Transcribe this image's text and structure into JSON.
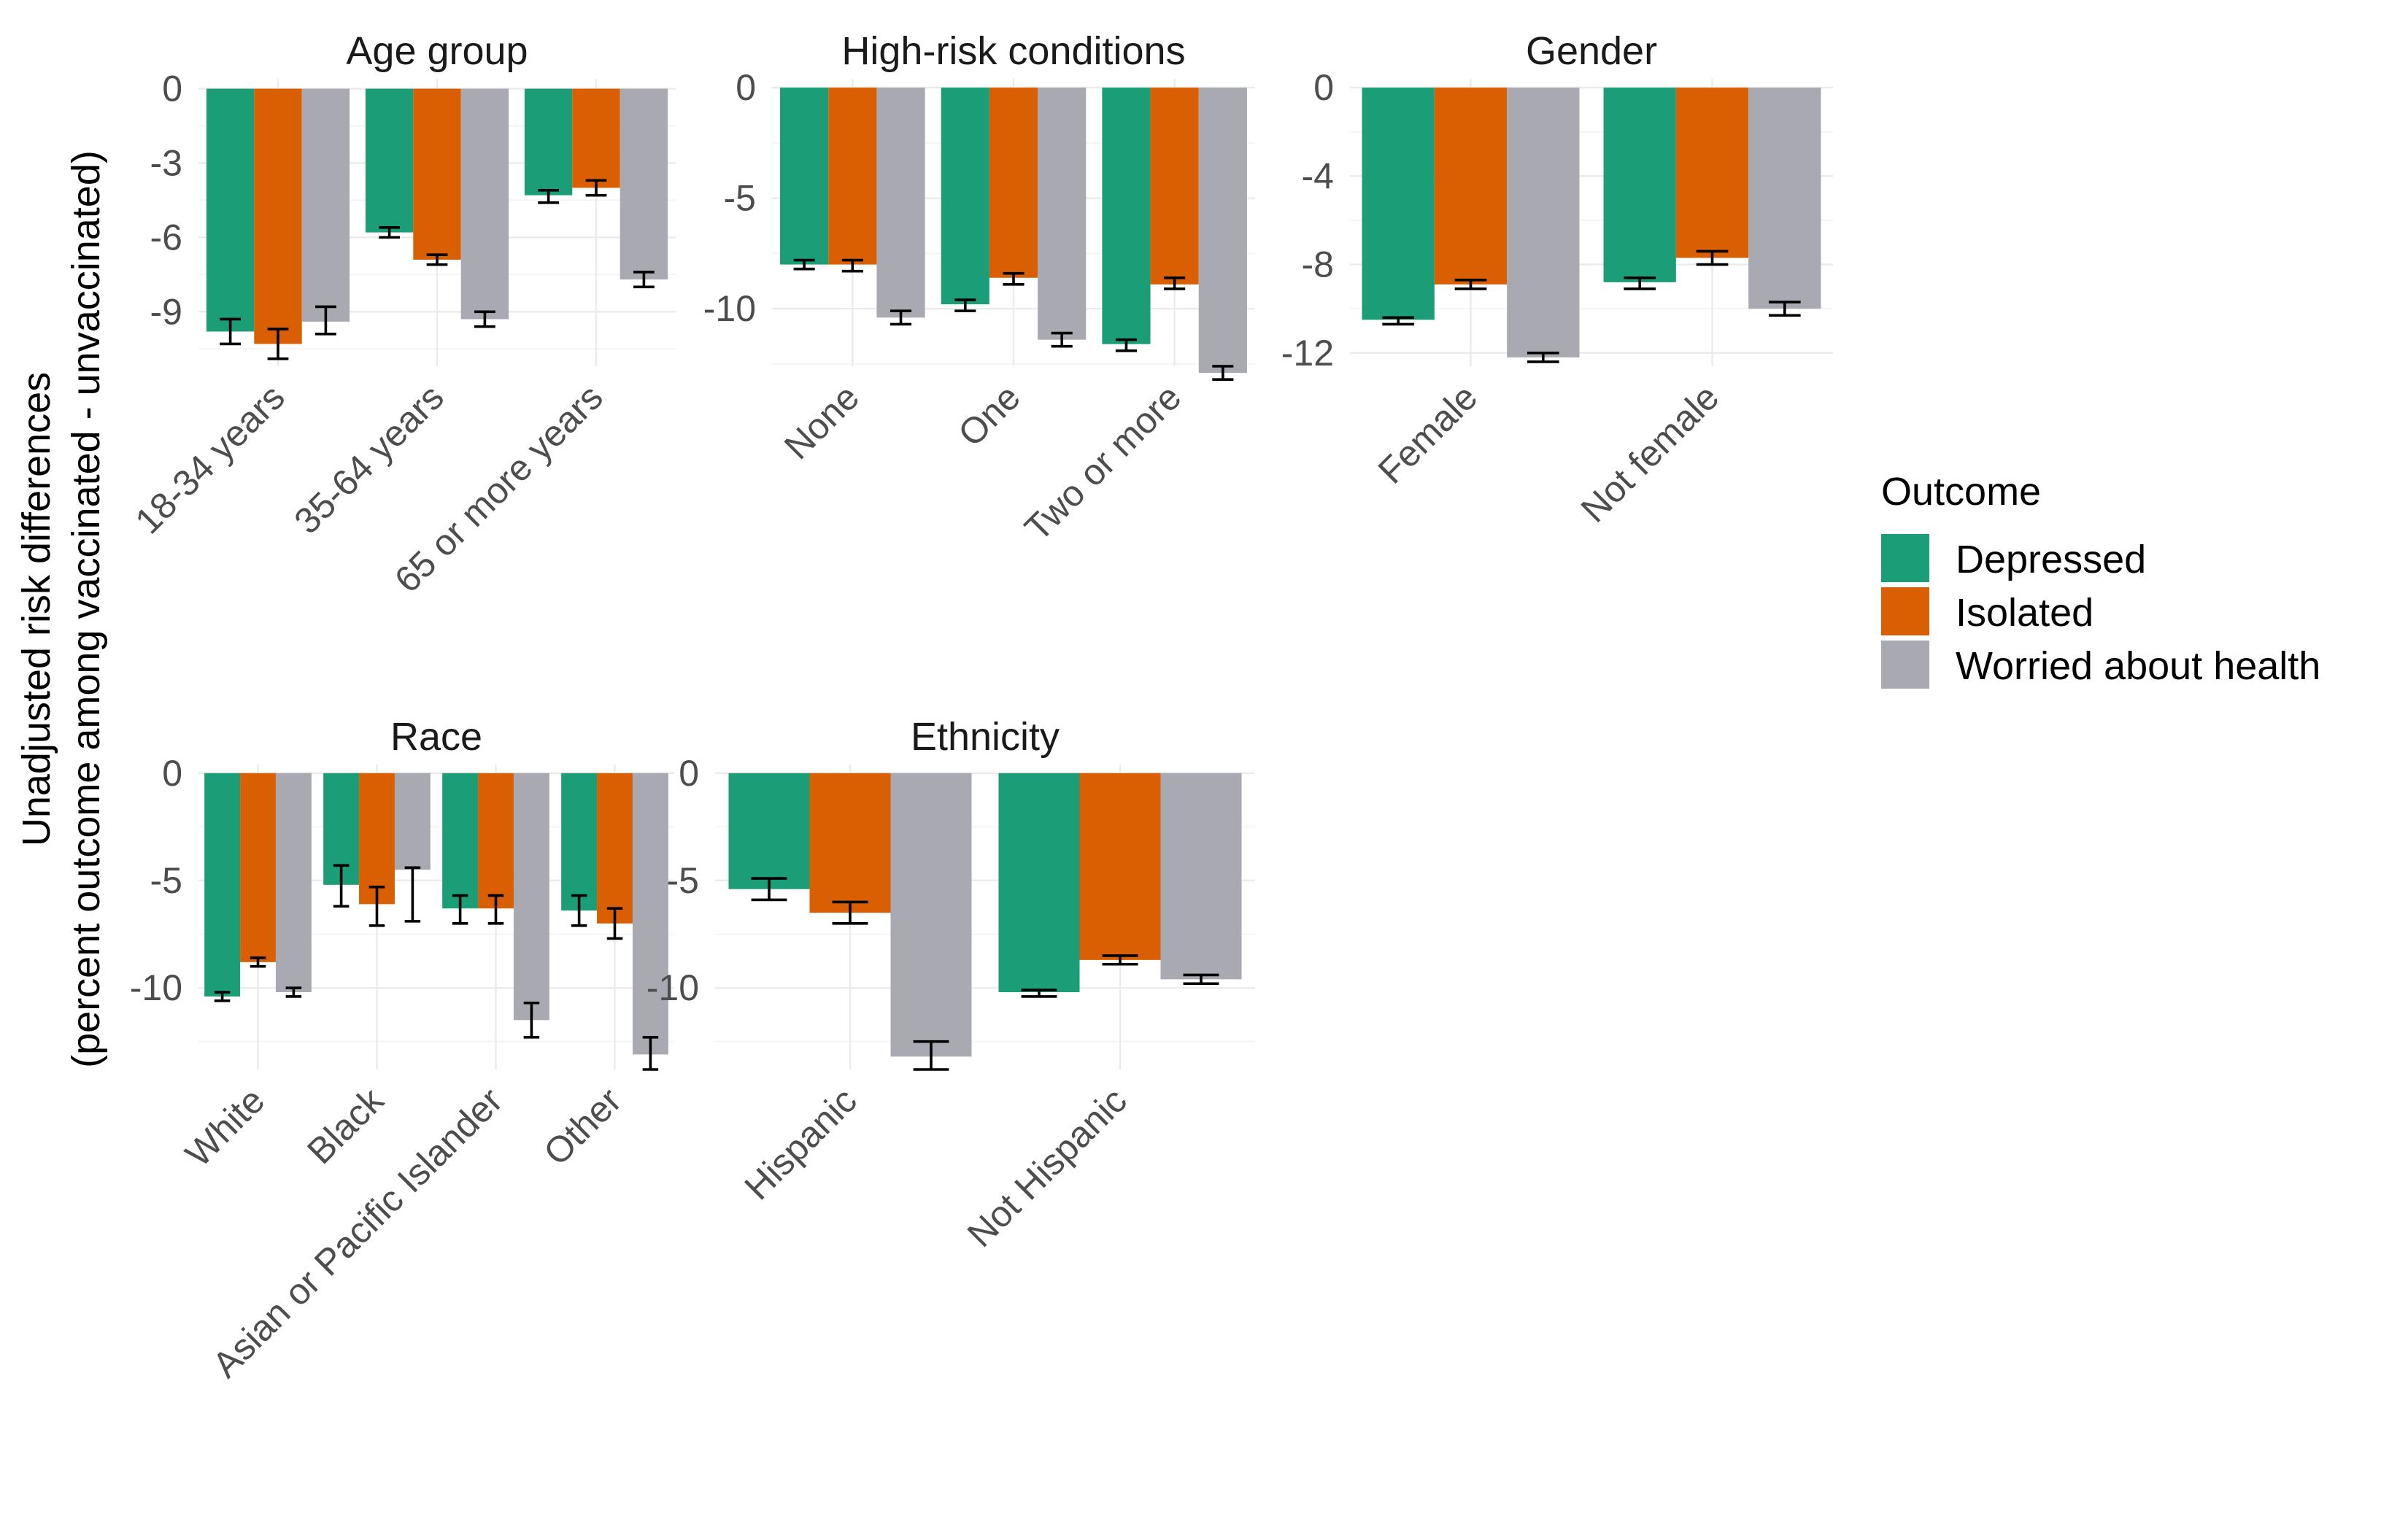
{
  "colors": {
    "Depressed": "#1b9e77",
    "Isolated": "#d95f02",
    "Worried about health": "#a9a9b1"
  },
  "y_axis_title": {
    "line1": "Unadjusted risk differences",
    "line2": "(percent outcome among vaccinated - unvaccinated)"
  },
  "legend": {
    "title": "Outcome",
    "items": [
      "Depressed",
      "Isolated",
      "Worried about health"
    ]
  },
  "chart_data": [
    {
      "type": "bar",
      "title": "Age group",
      "categories": [
        "18-34 years",
        "35-64 years",
        "65 or more years"
      ],
      "ylim": [
        -11.2,
        0.4
      ],
      "yticks": [
        0,
        -3,
        -6,
        -9
      ],
      "series": [
        {
          "name": "Depressed",
          "values": [
            -9.8,
            -5.8,
            -4.3
          ],
          "lower": [
            -10.3,
            -6.0,
            -4.6
          ],
          "upper": [
            -9.3,
            -5.6,
            -4.1
          ]
        },
        {
          "name": "Isolated",
          "values": [
            -10.3,
            -6.9,
            -4.0
          ],
          "lower": [
            -10.9,
            -7.1,
            -4.3
          ],
          "upper": [
            -9.7,
            -6.7,
            -3.7
          ]
        },
        {
          "name": "Worried about health",
          "values": [
            -9.4,
            -9.3,
            -7.7
          ],
          "lower": [
            -9.9,
            -9.6,
            -8.0
          ],
          "upper": [
            -8.8,
            -9.0,
            -7.4
          ]
        }
      ]
    },
    {
      "type": "bar",
      "title": "High-risk conditions",
      "categories": [
        "None",
        "One",
        "Two or more"
      ],
      "ylim": [
        -12.6,
        0.4
      ],
      "yticks": [
        0,
        -5,
        -10
      ],
      "series": [
        {
          "name": "Depressed",
          "values": [
            -8.0,
            -9.8,
            -11.6
          ],
          "lower": [
            -8.2,
            -10.1,
            -11.9
          ],
          "upper": [
            -7.8,
            -9.6,
            -11.4
          ]
        },
        {
          "name": "Isolated",
          "values": [
            -8.0,
            -8.6,
            -8.9
          ],
          "lower": [
            -8.3,
            -8.9,
            -9.1
          ],
          "upper": [
            -7.8,
            -8.4,
            -8.6
          ]
        },
        {
          "name": "Worried about health",
          "values": [
            -10.4,
            -11.4,
            -12.9
          ],
          "lower": [
            -10.7,
            -11.7,
            -13.2
          ],
          "upper": [
            -10.1,
            -11.1,
            -12.6
          ]
        }
      ]
    },
    {
      "type": "bar",
      "title": "Gender",
      "categories": [
        "Female",
        "Not female"
      ],
      "ylim": [
        -12.6,
        0.4
      ],
      "yticks": [
        0,
        -4,
        -8,
        -12
      ],
      "series": [
        {
          "name": "Depressed",
          "values": [
            -10.5,
            -8.8
          ],
          "lower": [
            -10.7,
            -9.1
          ],
          "upper": [
            -10.4,
            -8.6
          ]
        },
        {
          "name": "Isolated",
          "values": [
            -8.9,
            -7.7
          ],
          "lower": [
            -9.1,
            -8.0
          ],
          "upper": [
            -8.7,
            -7.4
          ]
        },
        {
          "name": "Worried about health",
          "values": [
            -12.2,
            -10.0
          ],
          "lower": [
            -12.4,
            -10.3
          ],
          "upper": [
            -12.0,
            -9.7
          ]
        }
      ]
    },
    {
      "type": "bar",
      "title": "Race",
      "categories": [
        "White",
        "Black",
        "Asian or Pacific Islander",
        "Other"
      ],
      "ylim": [
        -13.8,
        0.4
      ],
      "yticks": [
        0,
        -5,
        -10
      ],
      "series": [
        {
          "name": "Depressed",
          "values": [
            -10.4,
            -5.2,
            -6.3,
            -6.4
          ],
          "lower": [
            -10.6,
            -6.2,
            -7.0,
            -7.1
          ],
          "upper": [
            -10.2,
            -4.3,
            -5.7,
            -5.7
          ]
        },
        {
          "name": "Isolated",
          "values": [
            -8.8,
            -6.1,
            -6.3,
            -7.0
          ],
          "lower": [
            -9.0,
            -7.1,
            -7.0,
            -7.7
          ],
          "upper": [
            -8.6,
            -5.3,
            -5.7,
            -6.3
          ]
        },
        {
          "name": "Worried about health",
          "values": [
            -10.2,
            -4.5,
            -11.5,
            -13.1
          ],
          "lower": [
            -10.4,
            -6.9,
            -12.3,
            -13.8
          ],
          "upper": [
            -10.0,
            -4.4,
            -10.7,
            -12.3
          ]
        }
      ]
    },
    {
      "type": "bar",
      "title": "Ethnicity",
      "categories": [
        "Hispanic",
        "Not Hispanic"
      ],
      "ylim": [
        -13.8,
        0.4
      ],
      "yticks": [
        0,
        -5,
        -10
      ],
      "series": [
        {
          "name": "Depressed",
          "values": [
            -5.4,
            -10.2
          ],
          "lower": [
            -5.9,
            -10.4
          ],
          "upper": [
            -4.9,
            -10.1
          ]
        },
        {
          "name": "Isolated",
          "values": [
            -6.5,
            -8.7
          ],
          "lower": [
            -7.0,
            -8.9
          ],
          "upper": [
            -6.0,
            -8.5
          ]
        },
        {
          "name": "Worried about health",
          "values": [
            -13.2,
            -9.6
          ],
          "lower": [
            -13.8,
            -9.8
          ],
          "upper": [
            -12.5,
            -9.4
          ]
        }
      ]
    }
  ]
}
